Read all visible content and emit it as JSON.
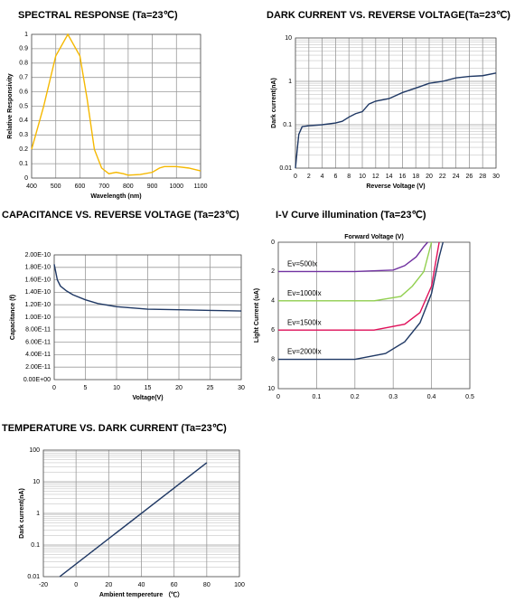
{
  "chart_data": [
    {
      "type": "line",
      "title": "SPECTRAL RESPONSE (Ta=23℃)",
      "xlabel": "Wavelength (nm)",
      "ylabel": "Relative Responsivity",
      "x": [
        400,
        450,
        500,
        550,
        600,
        630,
        660,
        690,
        720,
        750,
        780,
        800,
        850,
        900,
        930,
        950,
        1000,
        1050,
        1100
      ],
      "values": [
        0.2,
        0.5,
        0.85,
        1.0,
        0.85,
        0.55,
        0.2,
        0.07,
        0.03,
        0.04,
        0.03,
        0.02,
        0.025,
        0.04,
        0.07,
        0.08,
        0.08,
        0.07,
        0.05
      ],
      "color": "#f5b800",
      "xlim": [
        400,
        1100
      ],
      "xticks": [
        400,
        500,
        600,
        700,
        800,
        900,
        1000,
        1100
      ],
      "ylim": [
        0,
        1
      ],
      "yticks": [
        0,
        0.1,
        0.2,
        0.3,
        0.4,
        0.5,
        0.6,
        0.7,
        0.8,
        0.9,
        1
      ],
      "grid": true
    },
    {
      "type": "line",
      "title": "DARK CURRENT VS. REVERSE VOLTAGE(Ta=23℃)",
      "xlabel": "Reverse Voltage (V)",
      "ylabel": "Dark current(nA)",
      "x": [
        0,
        0.3,
        0.5,
        1,
        2,
        4,
        6,
        7,
        8,
        9,
        10,
        11,
        12,
        14,
        16,
        18,
        20,
        22,
        24,
        26,
        28,
        30
      ],
      "values": [
        0.01,
        0.03,
        0.06,
        0.09,
        0.095,
        0.1,
        0.11,
        0.12,
        0.15,
        0.18,
        0.2,
        0.3,
        0.35,
        0.4,
        0.55,
        0.7,
        0.9,
        1.0,
        1.2,
        1.3,
        1.35,
        1.55
      ],
      "color": "#1f3864",
      "xlim": [
        0,
        30
      ],
      "xticks": [
        0,
        2,
        4,
        6,
        8,
        10,
        12,
        14,
        16,
        18,
        20,
        22,
        24,
        26,
        28,
        30
      ],
      "ylim": [
        0.01,
        10
      ],
      "yticks": [
        0.01,
        0.1,
        1,
        10
      ],
      "y_scale": "log",
      "grid": true,
      "minor_grid": true
    },
    {
      "type": "line",
      "title": "CAPACITANCE VS. REVERSE VOLTAGE (Ta=23℃)",
      "xlabel": "Voltage(V)",
      "ylabel": "Capacitance (f)",
      "x": [
        0,
        0.5,
        1,
        2,
        3,
        5,
        7,
        10,
        15,
        20,
        25,
        30
      ],
      "values": [
        1.85e-10,
        1.6e-10,
        1.5e-10,
        1.42e-10,
        1.36e-10,
        1.28e-10,
        1.22e-10,
        1.17e-10,
        1.13e-10,
        1.12e-10,
        1.11e-10,
        1.1e-10
      ],
      "color": "#1f3864",
      "xlim": [
        0,
        30
      ],
      "xticks": [
        0,
        5,
        10,
        15,
        20,
        25,
        30
      ],
      "ylim": [
        0,
        2e-10
      ],
      "yticks": [
        {
          "value": 0,
          "label": "0.00E+00"
        },
        {
          "value": 2e-11,
          "label": "2.00E-11"
        },
        {
          "value": 4e-11,
          "label": "4.00E-11"
        },
        {
          "value": 6e-11,
          "label": "6.00E-11"
        },
        {
          "value": 8e-11,
          "label": "8.00E-11"
        },
        {
          "value": 1e-10,
          "label": "1.00E-10"
        },
        {
          "value": 1.2e-10,
          "label": "1.20E-10"
        },
        {
          "value": 1.4e-10,
          "label": "1.40E-10"
        },
        {
          "value": 1.6e-10,
          "label": "1.60E-10"
        },
        {
          "value": 1.8e-10,
          "label": "1.80E-10"
        },
        {
          "value": 2e-10,
          "label": "2.00E-10"
        }
      ],
      "grid": true
    },
    {
      "type": "line",
      "title": "I-V Curve illumination (Ta=23℃)",
      "xlabel": "Forward Voltage (V)",
      "xlabel_position": "top",
      "ylabel": "Light Current (uA)",
      "series": [
        {
          "name": "Ev=500lx",
          "color": "#7030a0",
          "x": [
            0,
            0.2,
            0.3,
            0.33,
            0.36,
            0.38,
            0.39
          ],
          "values": [
            2,
            2,
            1.9,
            1.6,
            1,
            0.3,
            0
          ]
        },
        {
          "name": "Ev=1000lx",
          "color": "#92d050",
          "x": [
            0,
            0.25,
            0.32,
            0.35,
            0.38,
            0.4
          ],
          "values": [
            4,
            4,
            3.7,
            3,
            2,
            0
          ]
        },
        {
          "name": "Ev=1500lx",
          "color": "#e0105a",
          "x": [
            0,
            0.25,
            0.33,
            0.37,
            0.4,
            0.42
          ],
          "values": [
            6,
            6,
            5.6,
            4.8,
            3,
            0
          ]
        },
        {
          "name": "Ev=2000lx",
          "color": "#1f3864",
          "x": [
            0,
            0.2,
            0.28,
            0.33,
            0.37,
            0.4,
            0.42,
            0.43
          ],
          "values": [
            8,
            8,
            7.6,
            6.8,
            5.5,
            3.5,
            1,
            0
          ]
        }
      ],
      "xlim": [
        0,
        0.5
      ],
      "xticks": [
        0,
        0.1,
        0.2,
        0.3,
        0.4,
        0.5
      ],
      "ylim": [
        0,
        10
      ],
      "yticks": [
        0,
        2,
        4,
        6,
        8,
        10
      ],
      "y_reversed": true,
      "grid": true
    },
    {
      "type": "line",
      "title": "TEMPERATURE VS. DARK CURRENT (Ta=23℃)",
      "xlabel": "Ambient tempereture （℃）",
      "ylabel": "Dark current(nA)",
      "x": [
        -10,
        80
      ],
      "values": [
        0.01,
        40
      ],
      "color": "#1f3864",
      "xlim": [
        -20,
        100
      ],
      "xticks": [
        -20,
        0,
        20,
        40,
        60,
        80,
        100
      ],
      "ylim": [
        0.01,
        100
      ],
      "yticks": [
        0.01,
        0.1,
        1,
        10,
        100
      ],
      "y_scale": "log",
      "grid": true,
      "minor_grid": true
    }
  ]
}
